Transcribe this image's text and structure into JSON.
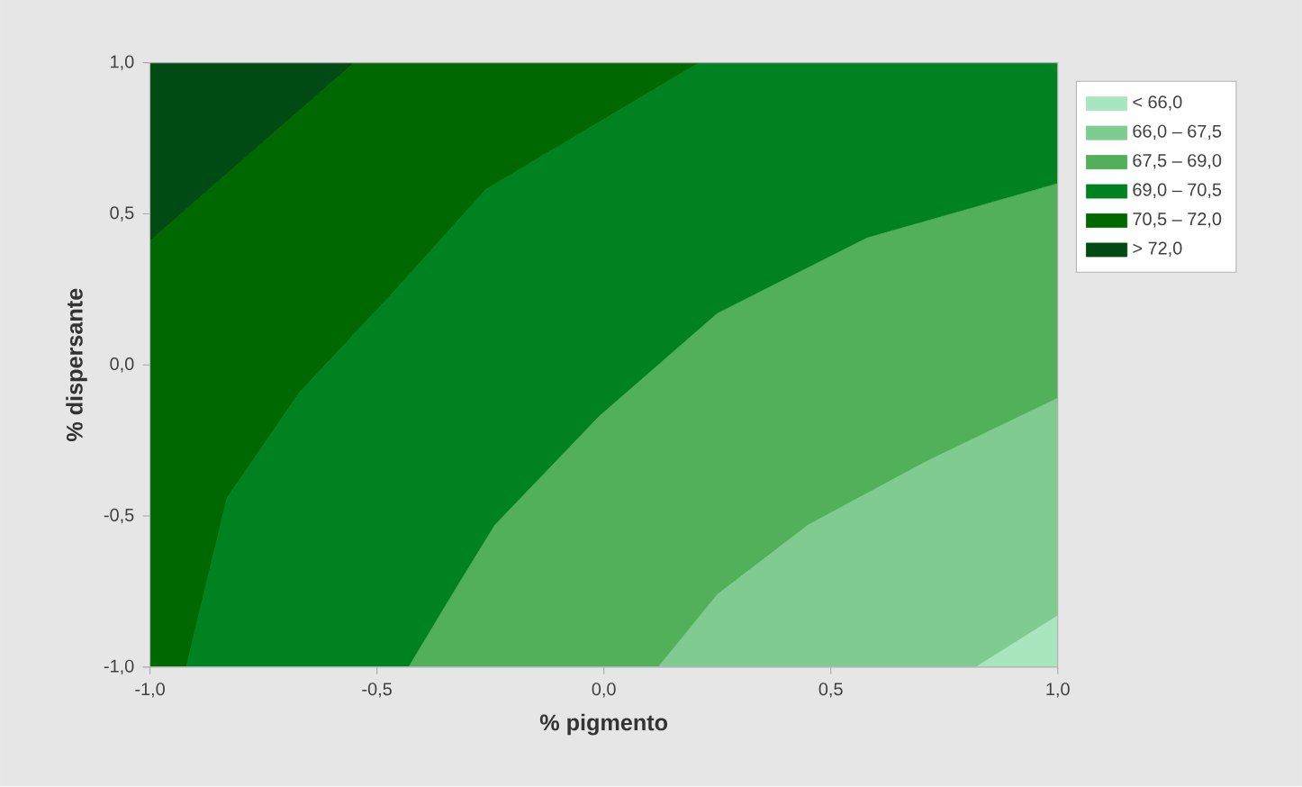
{
  "chart_data": {
    "type": "area",
    "xlabel": "% pigmento",
    "ylabel": "% dispersante",
    "xlim": [
      -1,
      1
    ],
    "ylim": [
      -1,
      1
    ],
    "xticks": [
      {
        "value": -1,
        "label": "-1,0"
      },
      {
        "value": -0.5,
        "label": "-0,5"
      },
      {
        "value": 0,
        "label": "0,0"
      },
      {
        "value": 0.5,
        "label": "0,5"
      },
      {
        "value": 1,
        "label": "1,0"
      }
    ],
    "yticks": [
      {
        "value": -1,
        "label": "-1,0"
      },
      {
        "value": -0.5,
        "label": "-0,5"
      },
      {
        "value": 0,
        "label": "0,0"
      },
      {
        "value": 0.5,
        "label": "0,5"
      },
      {
        "value": 1,
        "label": "1,0"
      }
    ],
    "legend": "right",
    "series": [
      {
        "name": "< 66,0",
        "color": "#a8e6bf",
        "x": [
          -1,
          0.82,
          1,
          1
        ],
        "values": [
          -1,
          -1,
          -0.83,
          -1
        ]
      },
      {
        "name": "66,0 – 67,5",
        "color": "#80cc90",
        "x": [
          -1,
          0.12,
          0.25,
          0.45,
          0.71,
          1,
          1
        ],
        "values": [
          -1,
          -1,
          -0.76,
          -0.53,
          -0.32,
          -0.11,
          -1
        ]
      },
      {
        "name": "67,5 – 69,0",
        "color": "#52b05a",
        "x": [
          -1,
          -0.43,
          -0.33,
          -0.24,
          -0.01,
          0.25,
          0.58,
          1,
          1
        ],
        "values": [
          -1,
          -1,
          -0.75,
          -0.53,
          -0.17,
          0.17,
          0.42,
          0.6,
          -1
        ]
      },
      {
        "name": "69,0 – 70,5",
        "color": "#008220",
        "x": [
          -1,
          -0.92,
          -0.88,
          -0.83,
          -0.67,
          -0.47,
          -0.26,
          0.21,
          1,
          1
        ],
        "values": [
          -1,
          -1,
          -0.75,
          -0.44,
          -0.09,
          0.23,
          0.58,
          1,
          1,
          -1
        ]
      },
      {
        "name": "70,5 – 72,0",
        "color": "#006800",
        "x": [
          -1,
          -1,
          -0.55,
          0.21,
          -0.26,
          -0.47,
          -0.67,
          -0.83,
          -0.88,
          -0.92
        ],
        "values": [
          -1,
          0.41,
          1,
          1,
          0.58,
          0.23,
          -0.09,
          -0.44,
          -0.75,
          -1
        ]
      },
      {
        "name": "> 72,0",
        "color": "#004a14",
        "x": [
          -1,
          -1,
          -0.55
        ],
        "values": [
          0.41,
          1,
          1
        ]
      }
    ]
  }
}
